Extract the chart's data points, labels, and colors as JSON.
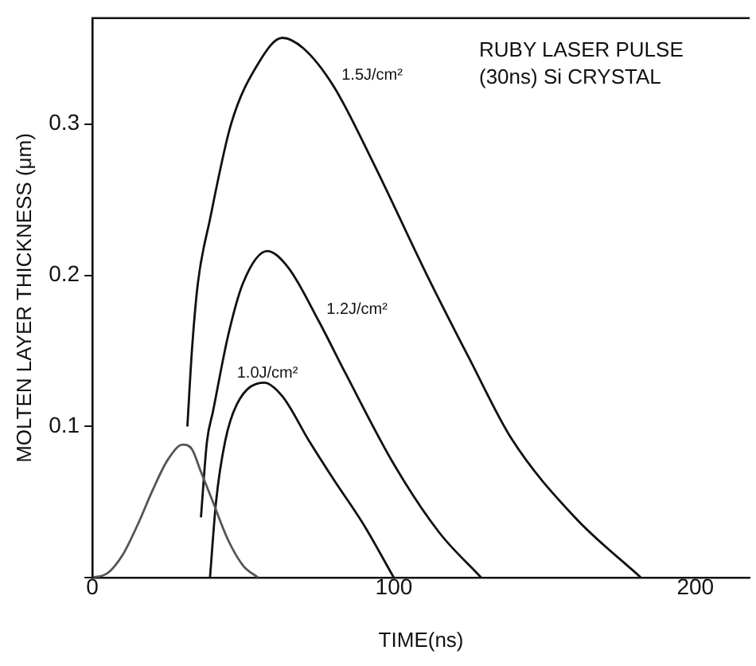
{
  "chart_data": {
    "type": "line",
    "xlabel": "TIME(ns)",
    "ylabel": "MOLTEN LAYER THICKNESS (μm)",
    "annotations": [
      "RUBY LASER PULSE",
      "(30ns) Si CRYSTAL"
    ],
    "xlim": [
      0,
      218
    ],
    "xticks": [
      0,
      100,
      200
    ],
    "ylim": [
      0,
      0.37
    ],
    "yticks": [
      {
        "value": 0,
        "label": null
      },
      0.1,
      0.2,
      0.3
    ],
    "grid": false,
    "legend": false,
    "marker": "none",
    "line_style": "solid",
    "series": [
      {
        "color": "#555555",
        "x": [
          0,
          5,
          10,
          15,
          20,
          25,
          30,
          33,
          36,
          40,
          45,
          50,
          55
        ],
        "values": [
          0,
          0.003,
          0.015,
          0.035,
          0.058,
          0.078,
          0.088,
          0.085,
          0.07,
          0.05,
          0.025,
          0.008,
          0
        ]
      },
      {
        "name": "1.5J/cm²",
        "color": "#111111",
        "x": [
          31.5,
          33,
          35,
          39,
          46,
          55,
          63,
          70,
          80,
          93,
          111,
          125,
          139,
          160,
          182
        ],
        "values": [
          0.1,
          0.15,
          0.195,
          0.237,
          0.3,
          0.34,
          0.357,
          0.35,
          0.325,
          0.275,
          0.2,
          0.145,
          0.092,
          0.04,
          0
        ]
      },
      {
        "name": "1.2J/cm²",
        "color": "#111111",
        "x": [
          36,
          38,
          40,
          45,
          50,
          58,
          65,
          75,
          84,
          100,
          115,
          129
        ],
        "values": [
          0.04,
          0.09,
          0.11,
          0.16,
          0.195,
          0.216,
          0.205,
          0.17,
          0.135,
          0.075,
          0.03,
          0
        ]
      },
      {
        "name": "1.0J/cm²",
        "color": "#111111",
        "x": [
          39,
          41,
          44,
          48,
          57,
          63,
          72,
          80,
          90,
          100
        ],
        "values": [
          0,
          0.05,
          0.09,
          0.115,
          0.129,
          0.12,
          0.09,
          0.065,
          0.035,
          0
        ]
      }
    ]
  }
}
